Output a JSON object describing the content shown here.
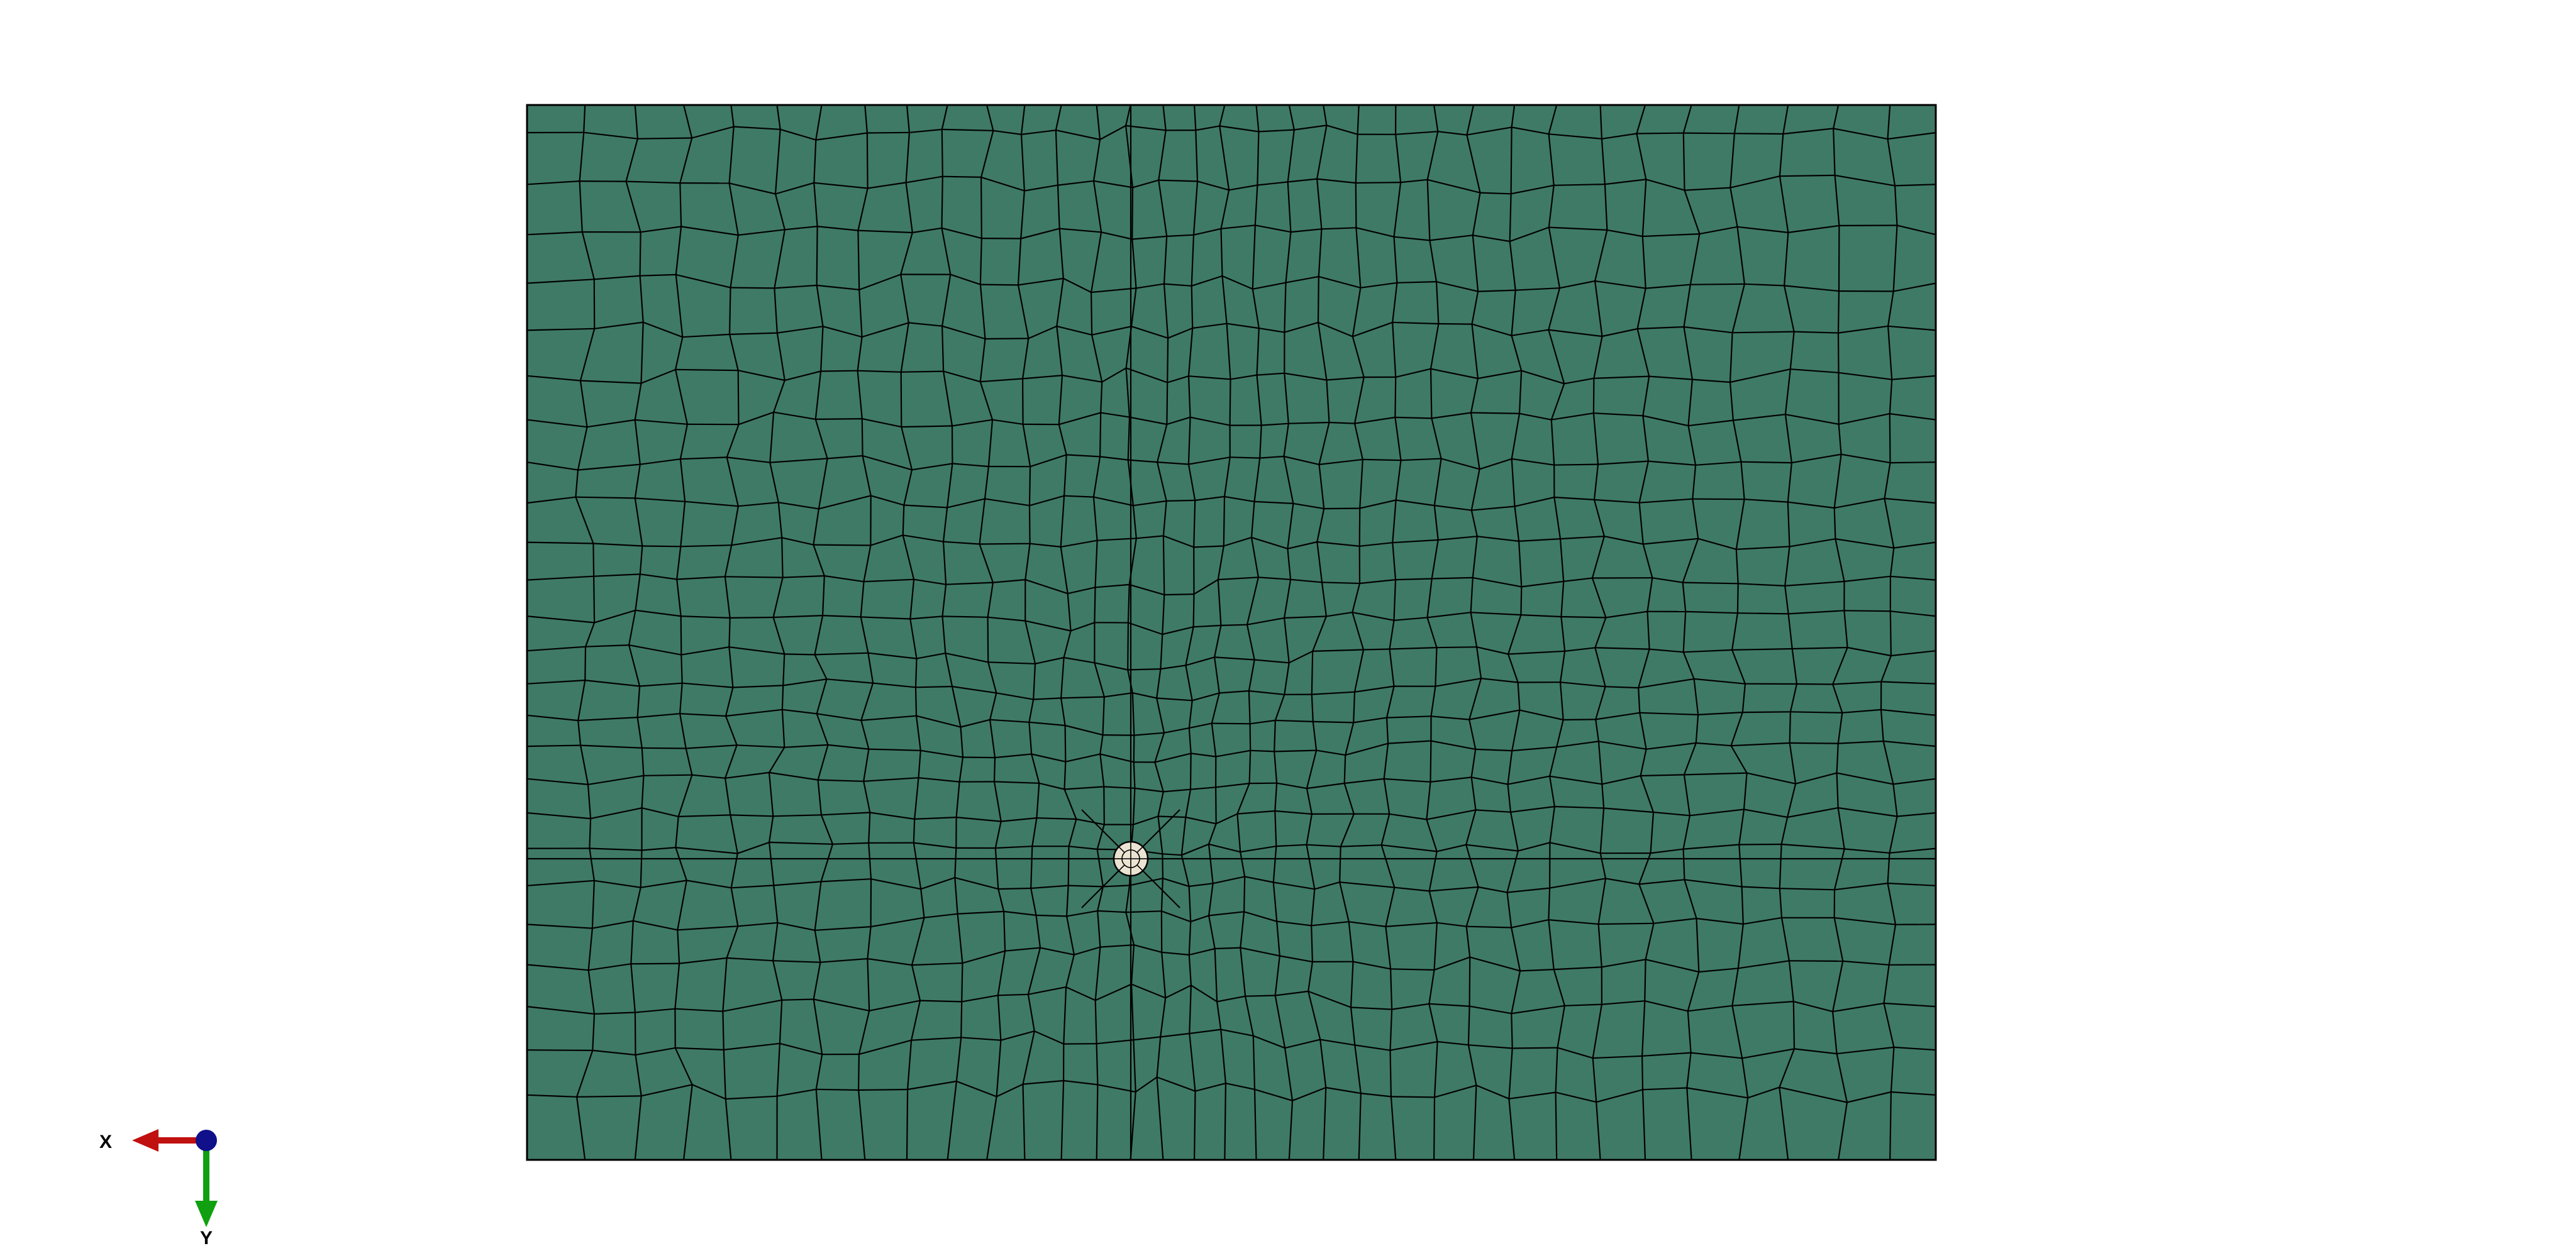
{
  "viewport": {
    "background": "#ffffff"
  },
  "model": {
    "part_fill": "#3f7a66",
    "mesh_line_color": "#000000",
    "hole_fill": "#ece4d2"
  },
  "triad": {
    "x_label": "X",
    "y_label": "Y",
    "x_color": "#c01010",
    "y_color": "#10a010",
    "origin_color": "#10108a"
  }
}
